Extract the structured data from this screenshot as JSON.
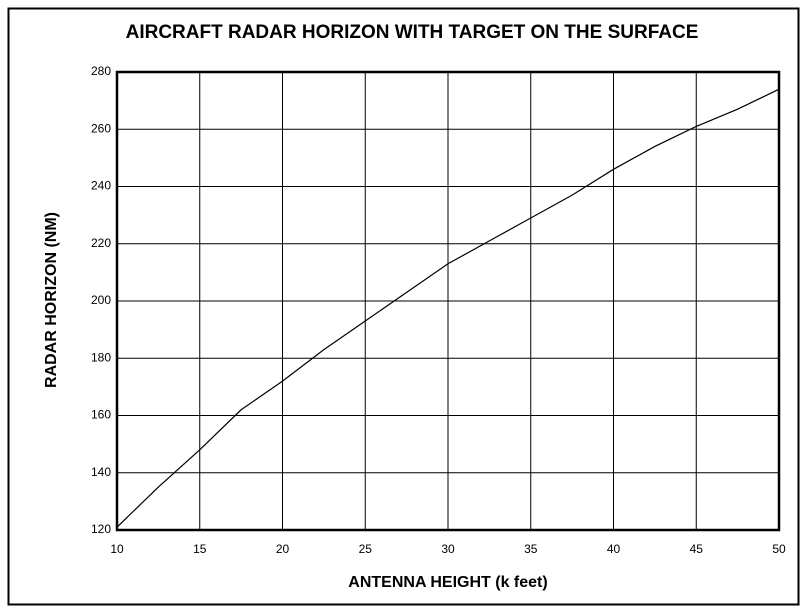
{
  "chart_data": {
    "type": "line",
    "title": "AIRCRAFT RADAR HORIZON WITH TARGET ON THE SURFACE",
    "xlabel": "ANTENNA HEIGHT (k feet)",
    "ylabel": "RADAR HORIZON (NM)",
    "x": [
      10,
      12.5,
      15,
      17.5,
      20,
      22.5,
      25,
      27.5,
      30,
      32.5,
      35,
      37.5,
      40,
      42.5,
      45,
      47.5,
      50
    ],
    "series": [
      {
        "name": "Radar horizon",
        "color": "#000000",
        "values": [
          121,
          135,
          148,
          162,
          172,
          183,
          193,
          203,
          213,
          221,
          229,
          237,
          246,
          254,
          261,
          267,
          274
        ]
      }
    ],
    "xlim": [
      10,
      50
    ],
    "xticks": [
      10,
      15,
      20,
      25,
      30,
      35,
      40,
      45,
      50
    ],
    "ylim": [
      120,
      280
    ],
    "yticks": [
      120,
      140,
      160,
      180,
      200,
      220,
      240,
      260,
      280
    ],
    "grid": true
  }
}
